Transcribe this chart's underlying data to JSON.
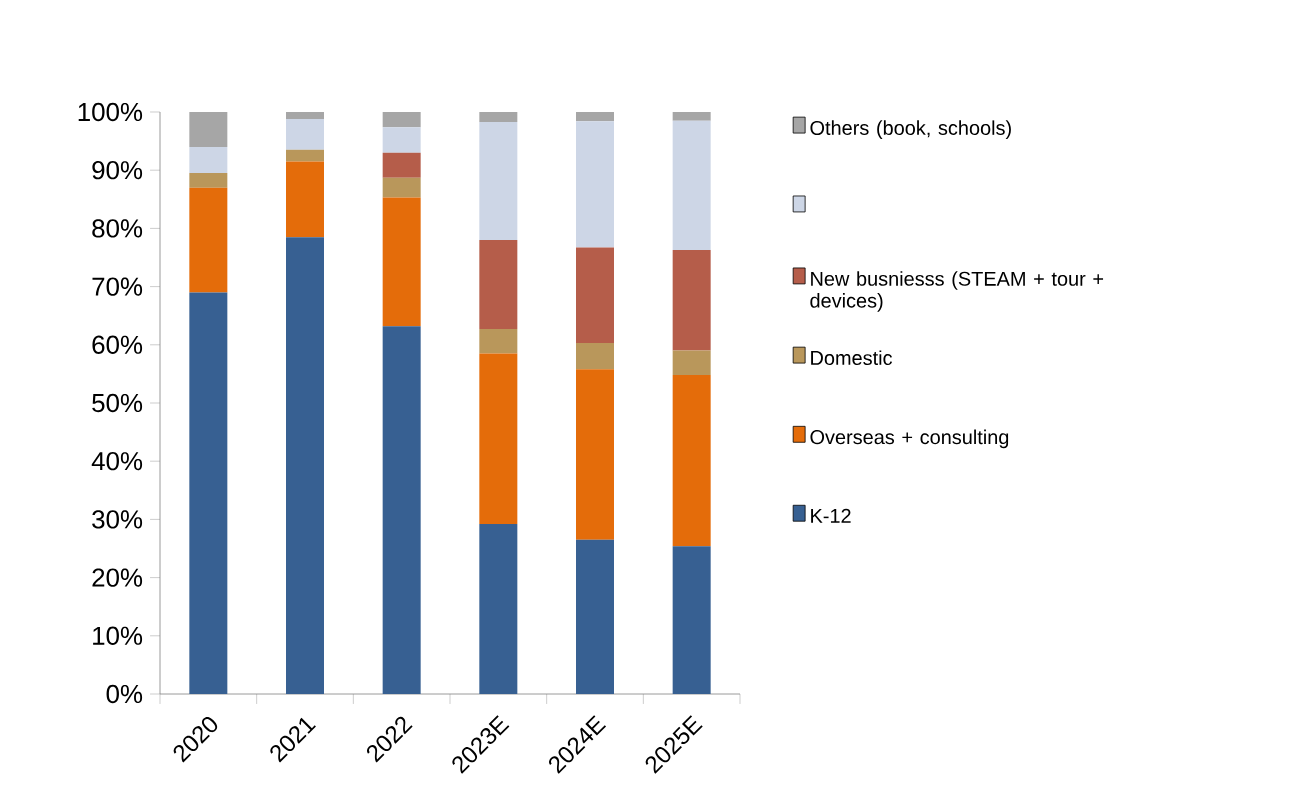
{
  "chart_data": {
    "type": "bar",
    "stacked": true,
    "categories": [
      "2020",
      "2021",
      "2022",
      "2023E",
      "2024E",
      "2025E"
    ],
    "series": [
      {
        "name": "K-12",
        "color": "#376092",
        "values": [
          69,
          78.5,
          63.2,
          29.2,
          26.5,
          25.4
        ]
      },
      {
        "name": "Overseas + consulting",
        "color": "#e46c0a",
        "values": [
          18,
          13,
          22.1,
          29.3,
          29.3,
          29.4
        ]
      },
      {
        "name": "Domestic",
        "color": "#b9975b",
        "values": [
          2.5,
          2,
          3.4,
          4.2,
          4.5,
          4.2
        ]
      },
      {
        "name": "New busniesss (STEAM + tour + devices)",
        "color": "#b55d4a",
        "values": [
          0,
          0,
          4.3,
          15.3,
          16.4,
          17.3
        ]
      },
      {
        "color": "#cdd6e6",
        "values": [
          4.5,
          5.3,
          4.4,
          20.3,
          21.7,
          22.2
        ]
      },
      {
        "name": "Others (book, schools)",
        "color": "#a6a6a6",
        "values": [
          6,
          1.2,
          2.6,
          1.7,
          1.6,
          1.5
        ]
      }
    ],
    "ylim": [
      0,
      100
    ],
    "yticks": [
      {
        "value": 0,
        "label": "0%"
      },
      {
        "value": 10,
        "label": "10%"
      },
      {
        "value": 20,
        "label": "20%"
      },
      {
        "value": 30,
        "label": "30%"
      },
      {
        "value": 40,
        "label": "40%"
      },
      {
        "value": 50,
        "label": "50%"
      },
      {
        "value": 60,
        "label": "60%"
      },
      {
        "value": 70,
        "label": "70%"
      },
      {
        "value": 80,
        "label": "80%"
      },
      {
        "value": 90,
        "label": "90%"
      },
      {
        "value": 100,
        "label": "100%"
      }
    ],
    "grid": false,
    "legend": "right"
  }
}
